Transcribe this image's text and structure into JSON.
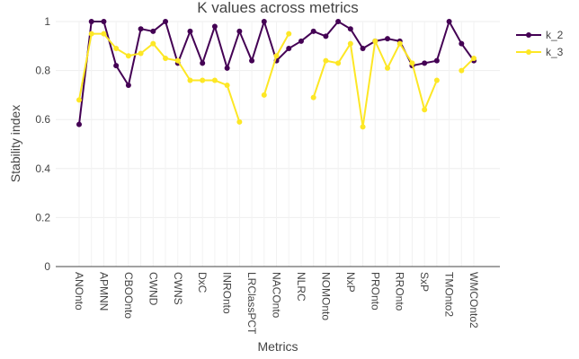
{
  "chart_data": {
    "type": "line",
    "title": "K values across metrics",
    "x_label": "Metrics",
    "y_label": "Stability index",
    "categories": [
      "ANOnto",
      null,
      "APMNN",
      null,
      "CBOOnto",
      null,
      "CWND",
      null,
      "CWNS",
      null,
      "DxC",
      null,
      "INROnto",
      null,
      "LRClassPCT",
      null,
      "NACOnto",
      null,
      "NLRC",
      null,
      "NOMOnto",
      null,
      "NxP",
      null,
      "PROnto",
      null,
      "RROnto",
      null,
      "SxP",
      null,
      "TMOnto2",
      null,
      "WMCOnto2"
    ],
    "series": [
      {
        "name": "k_2",
        "color": "#440154",
        "values": [
          0.58,
          1.0,
          1.0,
          0.82,
          0.74,
          0.97,
          0.96,
          1.0,
          0.83,
          0.96,
          0.83,
          0.98,
          0.81,
          0.96,
          0.84,
          1.0,
          0.84,
          0.89,
          0.92,
          0.96,
          0.94,
          1.0,
          0.97,
          0.89,
          0.92,
          0.93,
          0.92,
          0.82,
          0.83,
          0.84,
          1.0,
          0.91,
          0.84
        ]
      },
      {
        "name": "k_3",
        "color": "#fde725",
        "values": [
          0.68,
          0.95,
          0.95,
          0.89,
          0.86,
          0.87,
          0.91,
          0.85,
          0.84,
          0.76,
          0.76,
          0.76,
          0.74,
          0.59,
          null,
          0.7,
          0.86,
          0.95,
          null,
          0.69,
          0.84,
          0.83,
          0.91,
          0.57,
          0.92,
          0.81,
          0.91,
          0.83,
          0.64,
          0.76,
          null,
          0.8,
          0.85
        ]
      }
    ],
    "ylim": [
      0,
      1
    ],
    "yticks": [
      0,
      0.2,
      0.4,
      0.6,
      0.8,
      1
    ],
    "grid": true,
    "legend": "top-right"
  }
}
